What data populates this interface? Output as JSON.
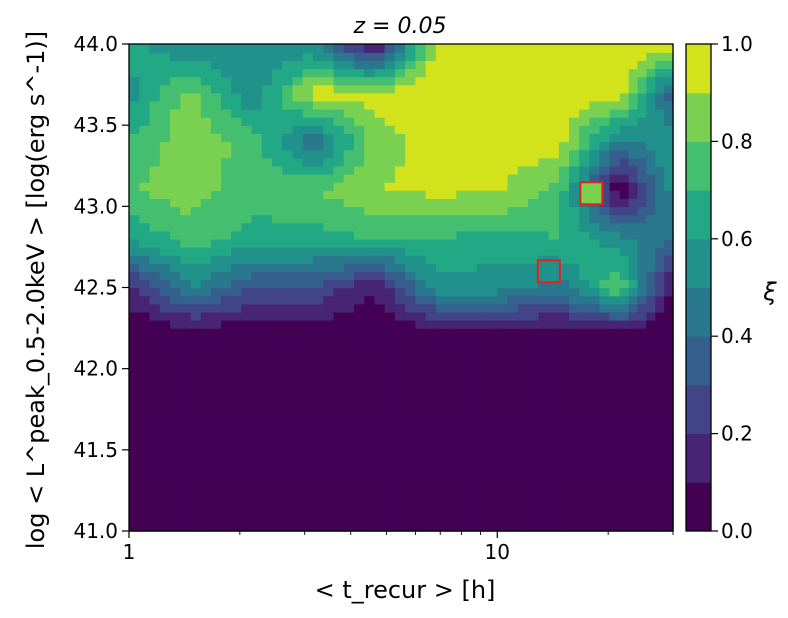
{
  "chart_data": {
    "type": "heatmap",
    "title": "z = 0.05",
    "xlabel": "< t_recur > [h]",
    "ylabel": "log < L^peak_0.5-2.0keV > [log(erg s^-1)]",
    "colorbar_label": "ξ",
    "x_scale": "log",
    "xlim": [
      1,
      30
    ],
    "ylim": [
      41.0,
      44.0
    ],
    "clim": [
      0.0,
      1.0
    ],
    "x_tick_labels": [
      "1",
      "10"
    ],
    "x_ticks": [
      1,
      10
    ],
    "y_ticks": [
      41.0,
      41.5,
      42.0,
      42.5,
      43.0,
      43.5,
      44.0
    ],
    "y_tick_labels": [
      "41.0",
      "41.5",
      "42.0",
      "42.5",
      "43.0",
      "43.5",
      "44.0"
    ],
    "colorbar_ticks": [
      0.0,
      0.2,
      0.4,
      0.6,
      0.8,
      1.0
    ],
    "colorbar_tick_labels": [
      "0.0",
      "0.2",
      "0.4",
      "0.6",
      "0.8",
      "1.0"
    ],
    "colormap": [
      "#440154",
      "#482475",
      "#414487",
      "#355f8d",
      "#2a788e",
      "#21918c",
      "#22a884",
      "#44bf70",
      "#7ad151",
      "#d2e21b"
    ],
    "grid_x": [
      1.0,
      1.47,
      2.15,
      3.16,
      4.64,
      6.81,
      10.0,
      14.7,
      21.5,
      30.0
    ],
    "grid_y": [
      41.0,
      41.3,
      41.6,
      41.9,
      42.2,
      42.5,
      42.8,
      43.1,
      43.4,
      43.7,
      44.0
    ],
    "z": [
      [
        0.0,
        0.0,
        0.0,
        0.0,
        0.0,
        0.0,
        0.0,
        0.0,
        0.0,
        0.0
      ],
      [
        0.0,
        0.0,
        0.0,
        0.0,
        0.0,
        0.0,
        0.0,
        0.0,
        0.0,
        0.0
      ],
      [
        0.0,
        0.0,
        0.0,
        0.0,
        0.0,
        0.0,
        0.0,
        0.0,
        0.0,
        0.0
      ],
      [
        0.0,
        0.0,
        0.0,
        0.0,
        0.0,
        0.0,
        0.0,
        0.0,
        0.0,
        0.0
      ],
      [
        0.0,
        0.0,
        0.0,
        0.0,
        0.0,
        0.0,
        0.0,
        0.0,
        0.0,
        0.0
      ],
      [
        0.15,
        0.5,
        0.3,
        0.3,
        0.1,
        0.55,
        0.55,
        0.45,
        0.8,
        0.05
      ],
      [
        0.6,
        0.75,
        0.65,
        0.65,
        0.7,
        0.7,
        0.65,
        0.7,
        0.55,
        0.4
      ],
      [
        0.8,
        0.85,
        0.75,
        0.8,
        0.9,
        0.92,
        0.92,
        0.75,
        0.0,
        0.55
      ],
      [
        0.7,
        0.88,
        0.75,
        0.4,
        0.85,
        0.95,
        0.97,
        0.95,
        0.45,
        0.6
      ],
      [
        0.55,
        0.85,
        0.5,
        0.95,
        0.95,
        0.97,
        0.97,
        0.97,
        0.97,
        0.3
      ],
      [
        0.65,
        0.5,
        0.5,
        0.5,
        0.05,
        0.95,
        0.97,
        0.97,
        0.97,
        0.97
      ]
    ],
    "highlight_boxes": [
      {
        "x": 13.8,
        "y": 42.6,
        "value": 0.5
      },
      {
        "x": 18.0,
        "y": 43.08,
        "value": 0.85
      }
    ]
  }
}
